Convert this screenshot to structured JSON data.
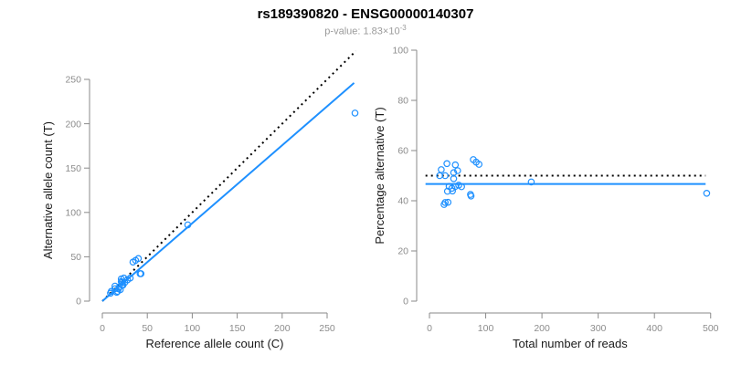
{
  "title": "rs189390820 - ENSG00000140307",
  "subtitle": {
    "text": "p-value: 1.83×10",
    "exponent": "-3"
  },
  "colors": {
    "point": "#1E90FF",
    "fit_line": "#1E90FF",
    "reference_line": "#000000",
    "axis": "#8a8a8a",
    "tick_label": "#8c8c8c",
    "axis_label": "#1a1a1a",
    "title": "#000000",
    "subtitle_text": "#9b9b9b",
    "background": "#ffffff"
  },
  "chart_data": [
    {
      "type": "scatter",
      "name": "allele-counts",
      "xlabel": "Reference allele count (C)",
      "ylabel": "Alternative allele count (T)",
      "xlim": [
        0,
        280
      ],
      "ylim": [
        0,
        282
      ],
      "xticks": [
        0,
        50,
        100,
        150,
        200,
        250
      ],
      "yticks": [
        0,
        50,
        100,
        150,
        200,
        250
      ],
      "grid": false,
      "legend": "none",
      "points": [
        [
          14,
          17
        ],
        [
          10,
          11
        ],
        [
          9,
          9
        ],
        [
          14,
          14
        ],
        [
          21,
          25
        ],
        [
          24,
          26
        ],
        [
          21,
          22
        ],
        [
          22,
          21
        ],
        [
          34,
          44
        ],
        [
          37,
          46
        ],
        [
          40,
          48
        ],
        [
          95,
          86
        ],
        [
          19,
          16
        ],
        [
          22,
          18
        ],
        [
          25,
          21
        ],
        [
          28,
          24
        ],
        [
          31,
          26
        ],
        [
          18,
          14
        ],
        [
          23,
          18
        ],
        [
          43,
          31
        ],
        [
          42,
          31
        ],
        [
          16,
          10
        ],
        [
          17,
          11
        ],
        [
          20,
          13
        ],
        [
          281,
          212
        ]
      ],
      "lines": [
        {
          "name": "identity-line",
          "style": "dotted",
          "color": "#000000",
          "x1": 0,
          "y1": 0,
          "x2": 282,
          "y2": 282
        },
        {
          "name": "fit-line",
          "style": "solid",
          "color": "#1E90FF",
          "x1": 0,
          "y1": 0,
          "x2": 280,
          "y2": 246
        }
      ]
    },
    {
      "type": "scatter",
      "name": "percentage-vs-reads",
      "xlabel": "Total number of reads",
      "ylabel": "Percentage alternative (T)",
      "xlim": [
        0,
        500
      ],
      "ylim": [
        0,
        100
      ],
      "xticks": [
        0,
        100,
        200,
        300,
        400,
        500
      ],
      "yticks": [
        0,
        20,
        40,
        60,
        80,
        100
      ],
      "grid": false,
      "legend": "none",
      "points": [
        [
          31,
          54.8
        ],
        [
          21,
          52.4
        ],
        [
          18,
          50.0
        ],
        [
          28,
          50.0
        ],
        [
          46,
          54.3
        ],
        [
          50,
          52.0
        ],
        [
          43,
          51.2
        ],
        [
          43,
          48.8
        ],
        [
          78,
          56.4
        ],
        [
          83,
          55.4
        ],
        [
          88,
          54.5
        ],
        [
          181,
          47.5
        ],
        [
          35,
          45.7
        ],
        [
          40,
          45.0
        ],
        [
          46,
          45.7
        ],
        [
          52,
          46.2
        ],
        [
          57,
          45.6
        ],
        [
          32,
          43.8
        ],
        [
          41,
          43.9
        ],
        [
          74,
          41.9
        ],
        [
          73,
          42.5
        ],
        [
          26,
          38.5
        ],
        [
          28,
          39.3
        ],
        [
          33,
          39.4
        ],
        [
          493,
          43.0
        ]
      ],
      "lines": [
        {
          "name": "expected-line",
          "style": "dotted",
          "color": "#000000",
          "x1": -7,
          "y1": 50,
          "x2": 491,
          "y2": 50
        },
        {
          "name": "mean-line",
          "style": "solid",
          "color": "#1E90FF",
          "x1": -7,
          "y1": 46.7,
          "x2": 491,
          "y2": 46.7
        }
      ]
    }
  ]
}
